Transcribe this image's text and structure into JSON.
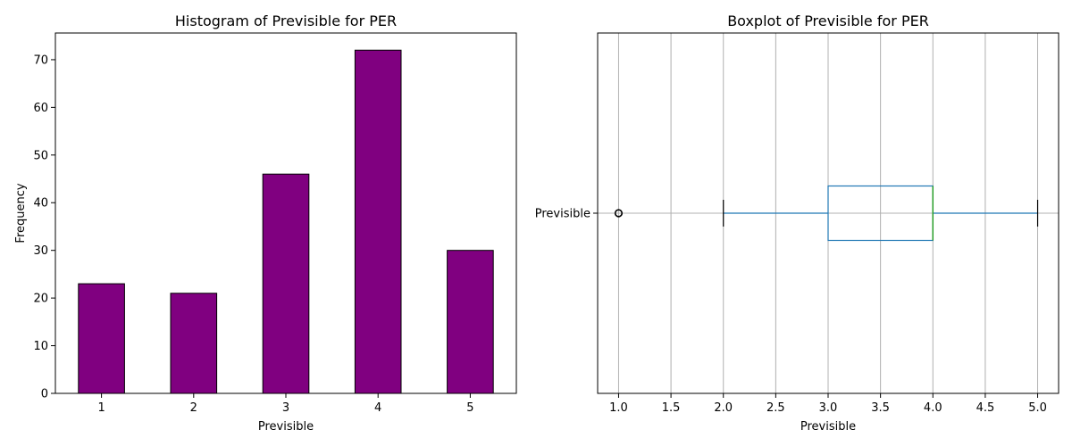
{
  "chart_data": [
    {
      "type": "bar",
      "title": "Histogram of Previsible for PER",
      "xlabel": "Previsible",
      "ylabel": "Frequency",
      "categories": [
        "1",
        "2",
        "3",
        "4",
        "5"
      ],
      "values": [
        23,
        21,
        46,
        72,
        30
      ],
      "ylim": [
        0,
        75.6
      ],
      "yticks": [
        0,
        10,
        20,
        30,
        40,
        50,
        60,
        70
      ],
      "bar_color": "#800080",
      "edge_color": "#000000",
      "grid": false
    },
    {
      "type": "boxplot",
      "title": "Boxplot of Previsible for PER",
      "xlabel": "Previsible",
      "category": "Previsible",
      "orientation": "horizontal",
      "whisker_low": 2.0,
      "q1": 3.0,
      "median": 4.0,
      "q3": 4.0,
      "whisker_high": 5.0,
      "outliers": [
        1.0
      ],
      "xlim": [
        0.8,
        5.2
      ],
      "xticks": [
        "1.0",
        "1.5",
        "2.0",
        "2.5",
        "3.0",
        "3.5",
        "4.0",
        "4.5",
        "5.0"
      ],
      "box_color": "#1f77b4",
      "median_color": "#2ca02c",
      "grid": true
    }
  ]
}
